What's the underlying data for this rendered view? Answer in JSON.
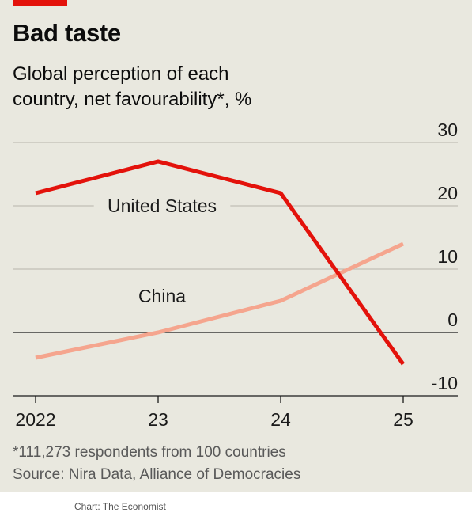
{
  "header": {
    "title": "Bad taste",
    "subtitle": "Global perception of each country, net favourability*, %"
  },
  "footnote": {
    "note": "*111,273 respondents from 100 countries",
    "source": "Source: Nira Data, Alliance of Democracies"
  },
  "credit": "Chart: The Economist",
  "colors": {
    "background": "#e9e8df",
    "accent": "#e3120b",
    "united_states": "#e3120b",
    "china": "#f5a58e"
  },
  "chart_data": {
    "type": "line",
    "x": [
      2022,
      2023,
      2024,
      2025
    ],
    "x_tick_labels": [
      "2022",
      "23",
      "24",
      "25"
    ],
    "ylim": [
      -10,
      30
    ],
    "y_ticks": [
      30,
      20,
      10,
      0,
      -10
    ],
    "grid": true,
    "series": [
      {
        "name": "United States",
        "values": [
          22,
          27,
          22,
          -5
        ],
        "color": "#e3120b"
      },
      {
        "name": "China",
        "values": [
          -4,
          0,
          5,
          14
        ],
        "color": "#f5a58e"
      }
    ]
  }
}
